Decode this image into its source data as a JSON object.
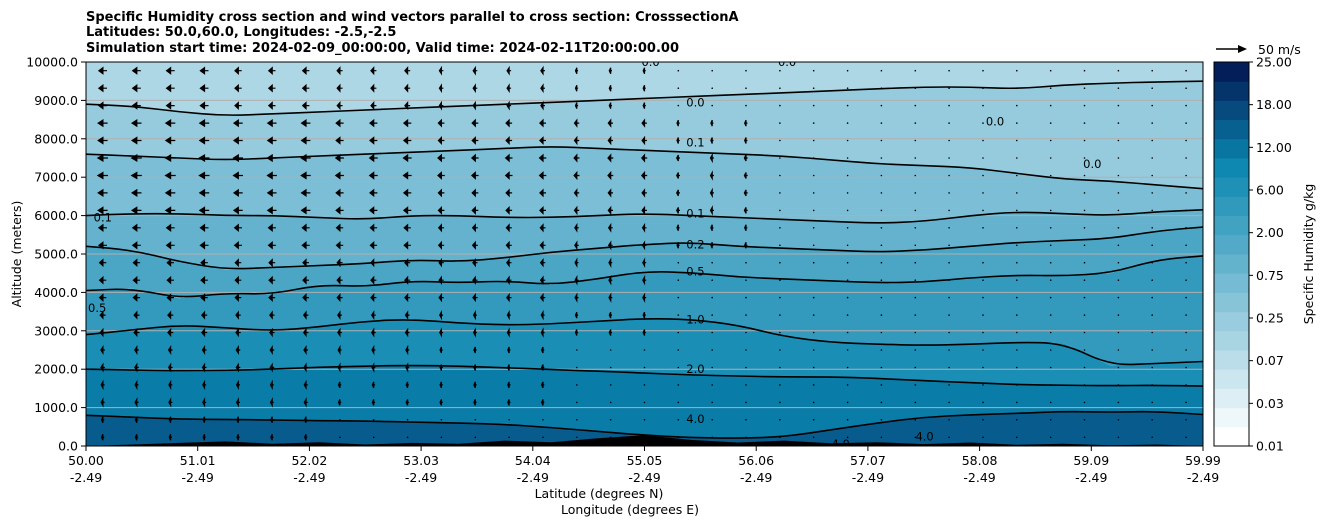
{
  "chart_data": {
    "type": "contour",
    "title_lines": [
      "Specific Humidity cross section and wind vectors parallel to cross section: CrosssectionA",
      "Latitudes: 50.0,60.0, Longitudes: -2.5,-2.5",
      "Simulation start time: 2024-02-09_00:00:00, Valid time: 2024-02-11T20:00:00.00"
    ],
    "ylabel": "Altitude (meters)",
    "xlabel_lat": "Latitude (degrees N)",
    "xlabel_lon": "Longitude (degrees E)",
    "ylim": [
      0,
      10000
    ],
    "xlim": [
      50.0,
      59.99
    ],
    "y_ticks": [
      0,
      1000,
      2000,
      3000,
      4000,
      5000,
      6000,
      7000,
      8000,
      9000,
      10000
    ],
    "y_tick_labels": [
      "0.0",
      "1000.0",
      "2000.0",
      "3000.0",
      "4000.0",
      "5000.0",
      "6000.0",
      "7000.0",
      "8000.0",
      "9000.0",
      "10000.0"
    ],
    "x_ticks": [
      {
        "lat": "50.00",
        "lon": "-2.49"
      },
      {
        "lat": "51.01",
        "lon": "-2.49"
      },
      {
        "lat": "52.02",
        "lon": "-2.49"
      },
      {
        "lat": "53.03",
        "lon": "-2.49"
      },
      {
        "lat": "54.04",
        "lon": "-2.49"
      },
      {
        "lat": "55.05",
        "lon": "-2.49"
      },
      {
        "lat": "56.06",
        "lon": "-2.49"
      },
      {
        "lat": "57.07",
        "lon": "-2.49"
      },
      {
        "lat": "58.08",
        "lon": "-2.49"
      },
      {
        "lat": "59.09",
        "lon": "-2.49"
      },
      {
        "lat": "59.99",
        "lon": "-2.49"
      }
    ],
    "colorbar": {
      "label": "Specific Humidity g/kg",
      "tick_labels": [
        "0.01",
        "0.03",
        "0.07",
        "0.25",
        "0.75",
        "2.00",
        "6.00",
        "12.00",
        "18.00",
        "25.00"
      ],
      "levels": 20,
      "color_light": "#ffffff",
      "color_mid": "#0a86b0",
      "color_dark": "#041e59"
    },
    "wind_key": {
      "label": "50 m/s",
      "speed_ms": 50
    },
    "contour_labels": [
      {
        "text": "0.0",
        "lat": 55.05,
        "alt": 10000
      },
      {
        "text": "0.0",
        "lat": 55.45,
        "alt": 8950
      },
      {
        "text": "0.0",
        "lat": 56.27,
        "alt": 10000
      },
      {
        "text": "0.0",
        "lat": 58.13,
        "alt": 8450
      },
      {
        "text": "0.0",
        "lat": 59.0,
        "alt": 7350
      },
      {
        "text": "0.1",
        "lat": 55.45,
        "alt": 7900
      },
      {
        "text": "0.1",
        "lat": 55.45,
        "alt": 6050
      },
      {
        "text": "0.1",
        "lat": 50.15,
        "alt": 5950
      },
      {
        "text": "0.2",
        "lat": 55.45,
        "alt": 5250
      },
      {
        "text": "0.5",
        "lat": 55.45,
        "alt": 4550
      },
      {
        "text": "0.5",
        "lat": 50.1,
        "alt": 3600
      },
      {
        "text": "1.0",
        "lat": 55.45,
        "alt": 3300
      },
      {
        "text": "2.0",
        "lat": 55.45,
        "alt": 2000
      },
      {
        "text": "4.0",
        "lat": 55.45,
        "alt": 700
      },
      {
        "text": "4.0",
        "lat": 56.75,
        "alt": 50
      },
      {
        "text": "4.0",
        "lat": 57.5,
        "alt": 250
      }
    ],
    "contour_lines": [
      {
        "level": "4.0",
        "alt": [
          800,
          750,
          700,
          690,
          680,
          660,
          650,
          620,
          600,
          560,
          480,
          380,
          280,
          220,
          200,
          240,
          420,
          600,
          750,
          810,
          850,
          900,
          880,
          900,
          820
        ],
        "kink": 0
      },
      {
        "level": "2.0",
        "alt": [
          2000,
          1980,
          1960,
          1970,
          2000,
          2050,
          2080,
          2100,
          2080,
          2040,
          1990,
          1950,
          1900,
          1850,
          1820,
          1800,
          1800,
          1760,
          1700,
          1650,
          1600,
          1580,
          1570,
          1580,
          1560
        ],
        "kink": 0
      },
      {
        "level": "1.0",
        "alt": [
          2900,
          3020,
          3150,
          3080,
          3000,
          3100,
          3250,
          3300,
          3200,
          3150,
          3180,
          3250,
          3320,
          3300,
          3150,
          2850,
          2700,
          2650,
          2620,
          2650,
          2700,
          2680,
          2100,
          2150,
          2200
        ],
        "kink": 0
      },
      {
        "level": "0.5",
        "alt": [
          4050,
          4100,
          3850,
          3980,
          3950,
          4200,
          4150,
          4300,
          4250,
          4300,
          4200,
          4350,
          4550,
          4520,
          4400,
          4350,
          4300,
          4250,
          4270,
          4380,
          4450,
          4430,
          4500,
          4850,
          4950
        ],
        "kink": 0
      },
      {
        "level": "0.2",
        "alt": [
          5200,
          5100,
          4800,
          4600,
          4650,
          4700,
          4750,
          4850,
          4800,
          4900,
          5050,
          5150,
          5250,
          5300,
          5200,
          5150,
          5100,
          5050,
          5100,
          5200,
          5300,
          5350,
          5400,
          5600,
          5700
        ],
        "kink": 0
      },
      {
        "level": "0.1",
        "alt": [
          6000,
          6050,
          6050,
          6000,
          6000,
          5950,
          5900,
          6000,
          6000,
          5950,
          5950,
          6000,
          6050,
          6000,
          5950,
          5900,
          5850,
          5800,
          5850,
          6000,
          6100,
          6050,
          6000,
          6100,
          6150
        ],
        "kink": 0
      },
      {
        "level": "0.1",
        "alt": [
          7600,
          7550,
          7500,
          7450,
          7500,
          7550,
          7600,
          7650,
          7700,
          7750,
          7800,
          7750,
          7700,
          7650,
          7600,
          7550,
          7450,
          7350,
          7300,
          7250,
          7100,
          6950,
          6900,
          6800,
          6700
        ],
        "kink": 0
      },
      {
        "level": "0.0",
        "alt": [
          8900,
          8850,
          8700,
          8600,
          8650,
          8700,
          8750,
          8800,
          8850,
          8900,
          8950,
          9000,
          9050,
          9100,
          9150,
          9200,
          9250,
          9300,
          9350,
          9350,
          9300,
          9400,
          9450,
          9480,
          9500
        ],
        "kink": 0
      }
    ],
    "wind_u_ms": [
      [
        -12,
        -10,
        -8,
        -6,
        -4,
        -2,
        -1,
        -1,
        -1,
        -1
      ],
      [
        -14,
        -13,
        -11,
        -9,
        -7,
        -4,
        -2,
        -1,
        -1,
        -1
      ],
      [
        -15,
        -14,
        -12,
        -10,
        -8,
        -5,
        -3,
        -2,
        -1,
        -1
      ],
      [
        -14,
        -13,
        -11,
        -9,
        -7,
        -5,
        -3,
        -2,
        -1,
        -1
      ],
      [
        -12,
        -11,
        -10,
        -8,
        -6,
        -4,
        -2,
        -1,
        -1,
        -1
      ],
      [
        -10,
        -9,
        -8,
        -7,
        -5,
        -3,
        -2,
        -1,
        -1,
        -1
      ],
      [
        -8,
        -7,
        -6,
        -5,
        -4,
        -3,
        -2,
        -1,
        -1,
        -1
      ],
      [
        -6,
        -6,
        -5,
        -4,
        -3,
        -2,
        -1,
        -1,
        -1,
        -1
      ],
      [
        -5,
        -5,
        -4,
        -4,
        -3,
        -2,
        -1,
        -1,
        -1,
        -1
      ],
      [
        -4,
        -4,
        -3,
        -3,
        -2,
        -2,
        -1,
        -1,
        -1,
        -1
      ]
    ]
  }
}
